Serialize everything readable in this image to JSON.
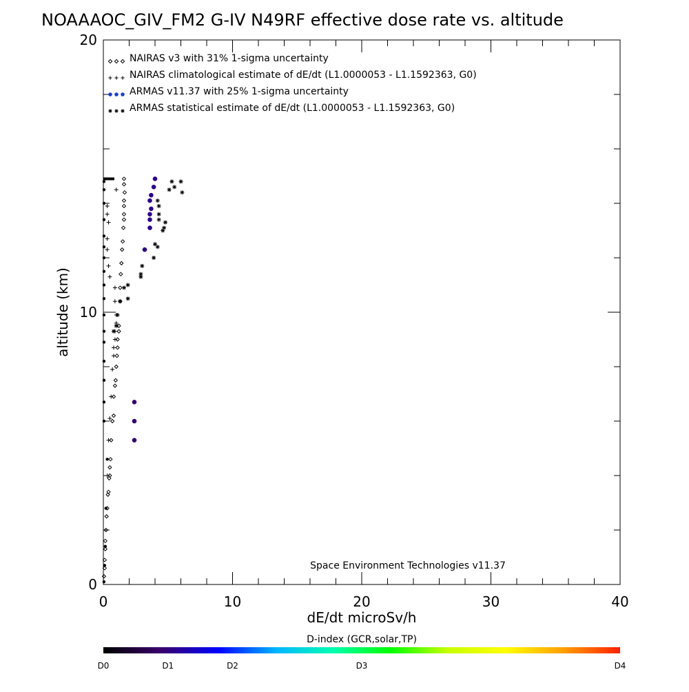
{
  "chart_data": {
    "type": "scatter",
    "title": "NOAAAOC_GIV_FM2 G-IV   N49RF  effective dose rate vs. altitude",
    "xlabel": "dE/dt microSv/h",
    "ylabel": "altitude (km)",
    "xlim": [
      0,
      40
    ],
    "ylim": [
      0,
      20
    ],
    "x_ticks": [
      {
        "value": 0,
        "label": "0"
      },
      {
        "value": 10,
        "label": "10"
      },
      {
        "value": 20,
        "label": "20"
      },
      {
        "value": 30,
        "label": "30"
      },
      {
        "value": 40,
        "label": "40"
      }
    ],
    "y_ticks": [
      {
        "value": 0,
        "label": "0"
      },
      {
        "value": 10,
        "label": "10"
      },
      {
        "value": 20,
        "label": "20"
      }
    ],
    "grid": false,
    "legend_placement": "top-left",
    "legend": [
      {
        "label": "NAIRAS v3 with 31% 1-sigma uncertainty",
        "marker": "diamond",
        "color": "#000000"
      },
      {
        "label": "NAIRAS climatological estimate of dE/dt (L1.0000053 - L1.1592363, G0)",
        "marker": "plus",
        "color": "#000000"
      },
      {
        "label": "ARMAS v11.37 with 25% 1-sigma uncertainty",
        "marker": "circle",
        "color": "#1a3fd6"
      },
      {
        "label": "ARMAS statistical estimate of dE/dt (L1.0000053 - L1.1592363, G0)",
        "marker": "asterisk",
        "color": "#000000"
      }
    ],
    "annotation": "Space Environment Technologies v11.37",
    "colorbar": {
      "title": "D-index (GCR,solar,TP)",
      "ticks": [
        {
          "label": "D0",
          "frac": 0.0
        },
        {
          "label": "D1",
          "frac": 0.125
        },
        {
          "label": "D2",
          "frac": 0.25
        },
        {
          "label": "D3",
          "frac": 0.5
        },
        {
          "label": "D4",
          "frac": 1.0
        }
      ],
      "stops": [
        "#000000",
        "#3a006b",
        "#0000ff",
        "#00b4ff",
        "#00ffb0",
        "#00ff00",
        "#c8ff00",
        "#ffff00",
        "#ffa000",
        "#ff2000"
      ]
    },
    "series": [
      {
        "name": "NAIRAS v3 with 31% 1-sigma uncertainty",
        "marker": "diamond",
        "color": "#000000",
        "points": [
          [
            0.05,
            0.3
          ],
          [
            0.1,
            0.6
          ],
          [
            0.1,
            0.9
          ],
          [
            0.15,
            1.3
          ],
          [
            0.15,
            1.6
          ],
          [
            0.2,
            2.0
          ],
          [
            0.25,
            2.5
          ],
          [
            0.3,
            2.8
          ],
          [
            0.35,
            3.3
          ],
          [
            0.4,
            3.4
          ],
          [
            0.45,
            3.9
          ],
          [
            0.5,
            4.0
          ],
          [
            0.5,
            4.3
          ],
          [
            0.55,
            4.6
          ],
          [
            0.6,
            5.3
          ],
          [
            0.7,
            6.0
          ],
          [
            0.8,
            6.2
          ],
          [
            0.8,
            6.9
          ],
          [
            0.9,
            7.3
          ],
          [
            0.95,
            7.5
          ],
          [
            1.0,
            8.0
          ],
          [
            1.05,
            8.4
          ],
          [
            1.1,
            8.7
          ],
          [
            1.1,
            9.0
          ],
          [
            1.2,
            9.3
          ],
          [
            1.2,
            9.5
          ],
          [
            1.3,
            10.4
          ],
          [
            1.3,
            10.9
          ],
          [
            1.35,
            11.4
          ],
          [
            1.4,
            11.8
          ],
          [
            1.45,
            12.3
          ],
          [
            1.5,
            12.6
          ],
          [
            1.55,
            13.1
          ],
          [
            1.6,
            13.4
          ],
          [
            1.6,
            13.6
          ],
          [
            1.6,
            13.9
          ],
          [
            1.6,
            14.1
          ],
          [
            1.65,
            14.4
          ],
          [
            1.6,
            14.7
          ],
          [
            1.6,
            14.9
          ]
        ]
      },
      {
        "name": "NAIRAS climatological estimate of dE/dt (L1.0000053 - L1.1592363, G0)",
        "marker": "plus",
        "color": "#000000",
        "points": [
          [
            0.3,
            4.0
          ],
          [
            0.4,
            5.3
          ],
          [
            0.5,
            6.1
          ],
          [
            0.6,
            6.9
          ],
          [
            0.7,
            7.9
          ],
          [
            0.8,
            8.4
          ],
          [
            0.8,
            8.7
          ],
          [
            0.9,
            9.0
          ],
          [
            0.9,
            9.3
          ],
          [
            1.0,
            9.6
          ],
          [
            1.0,
            9.9
          ],
          [
            0.9,
            10.4
          ],
          [
            0.9,
            10.9
          ],
          [
            0.5,
            11.3
          ],
          [
            0.4,
            11.7
          ],
          [
            0.3,
            12.3
          ],
          [
            0.3,
            12.7
          ],
          [
            0.4,
            13.3
          ],
          [
            0.3,
            13.6
          ],
          [
            0.3,
            13.9
          ],
          [
            1.0,
            14.5
          ]
        ]
      },
      {
        "name": "ARMAS v11.37 with 25% 1-sigma uncertainty",
        "marker": "circle",
        "points": [
          [
            2.4,
            5.3,
            0.12
          ],
          [
            2.4,
            6.0,
            0.12
          ],
          [
            2.4,
            6.7,
            0.12
          ],
          [
            3.2,
            12.3,
            0.14
          ],
          [
            3.6,
            13.1,
            0.14
          ],
          [
            3.6,
            13.4,
            0.14
          ],
          [
            3.6,
            13.6,
            0.14
          ],
          [
            3.7,
            13.8,
            0.14
          ],
          [
            3.6,
            14.1,
            0.14
          ],
          [
            3.7,
            14.3,
            0.14
          ],
          [
            3.9,
            14.6,
            0.14
          ],
          [
            4.0,
            14.9,
            0.14
          ],
          [
            0.05,
            0.1,
            0.0
          ],
          [
            0.1,
            0.7,
            0.0
          ],
          [
            0.15,
            1.4,
            0.0
          ],
          [
            0.2,
            2.8,
            0.0
          ],
          [
            0.3,
            4.6,
            0.0
          ],
          [
            0.05,
            6.0,
            0.0
          ],
          [
            0.05,
            6.7,
            0.0
          ],
          [
            0.05,
            7.5,
            0.0
          ],
          [
            0.05,
            8.2,
            0.0
          ],
          [
            0.05,
            8.9,
            0.0
          ],
          [
            0.05,
            9.3,
            0.0
          ],
          [
            0.05,
            9.9,
            0.0
          ],
          [
            0.05,
            10.5,
            0.0
          ],
          [
            0.05,
            11.0,
            0.0
          ],
          [
            0.05,
            11.5,
            0.0
          ],
          [
            0.05,
            12.0,
            0.0
          ],
          [
            0.05,
            12.4,
            0.0
          ],
          [
            0.05,
            12.8,
            0.0
          ],
          [
            0.05,
            13.4,
            0.0
          ],
          [
            0.05,
            14.0,
            0.0
          ],
          [
            0.05,
            14.5,
            0.0
          ],
          [
            0.05,
            14.8,
            0.0
          ]
        ]
      },
      {
        "name": "ARMAS statistical estimate of dE/dt (L1.0000053 - L1.1592363, G0)",
        "marker": "asterisk",
        "color": "#000000",
        "points": [
          [
            0.8,
            9.3
          ],
          [
            1.0,
            9.5
          ],
          [
            1.1,
            9.9
          ],
          [
            1.3,
            10.4
          ],
          [
            1.6,
            10.9
          ],
          [
            1.9,
            10.5
          ],
          [
            1.9,
            11.0
          ],
          [
            2.9,
            11.3
          ],
          [
            2.9,
            11.4
          ],
          [
            3.0,
            11.7
          ],
          [
            3.9,
            12.0
          ],
          [
            4.0,
            12.5
          ],
          [
            4.2,
            12.4
          ],
          [
            4.6,
            13.0
          ],
          [
            4.7,
            13.1
          ],
          [
            4.8,
            13.3
          ],
          [
            4.3,
            13.4
          ],
          [
            4.3,
            13.6
          ],
          [
            4.3,
            13.9
          ],
          [
            4.2,
            14.1
          ],
          [
            5.1,
            14.5
          ],
          [
            5.3,
            14.8
          ],
          [
            6.0,
            14.8
          ],
          [
            6.1,
            14.4
          ],
          [
            5.5,
            14.6
          ]
        ]
      }
    ],
    "ceiling_line": {
      "altitude": 14.9,
      "x_from": 0.0,
      "x_to": 0.85
    }
  }
}
